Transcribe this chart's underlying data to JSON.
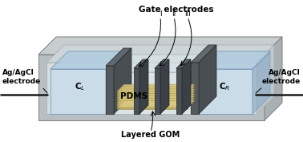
{
  "bg_color": "#ffffff",
  "labels": {
    "gate_electrodes": "Gate electrodes",
    "I": "I",
    "II": "II",
    "III": "III",
    "CL": "C$_L$",
    "CR": "C$_R$",
    "agagcl_left": "Ag/AgCl\nelectrode",
    "agagcl_right": "Ag/AgCl\nelectrode",
    "pdms": "PDMS",
    "layered_gom": "Layered GOM"
  },
  "figsize": [
    3.78,
    1.77
  ],
  "dpi": 100
}
